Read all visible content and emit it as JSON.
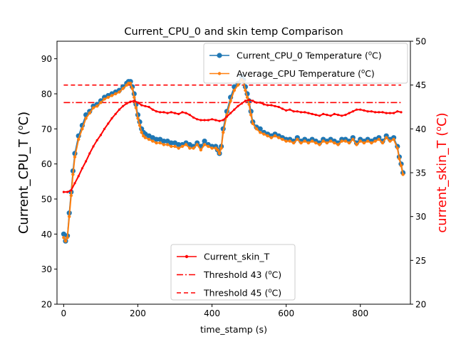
{
  "chart_data": {
    "type": "line",
    "title": "Current_CPU_0 and skin temp Comparison",
    "xlabel": "time_stamp (s)",
    "ylabel_left": "Current_CPU_T (ᵒC)",
    "ylabel_right": "current_skin_T (ᵒC)",
    "ylabel_left_parts": [
      "Current_CPU_T (",
      "o",
      "C)"
    ],
    "ylabel_right_parts": [
      "current_skin_T (",
      "o",
      "C)"
    ],
    "xlim": [
      -18,
      935
    ],
    "ylim_left": [
      20,
      95
    ],
    "ylim_right": [
      20,
      50
    ],
    "x_ticks": [
      0,
      200,
      400,
      600,
      800
    ],
    "y_ticks_left": [
      20,
      30,
      40,
      50,
      60,
      70,
      80,
      90
    ],
    "y_ticks_right": [
      20,
      25,
      30,
      35,
      40,
      45,
      50
    ],
    "grid": false,
    "legend_top": {
      "placement": "upper right",
      "entries": [
        {
          "series": "cpu",
          "label": "Current_CPU_0 Temperature (",
          "sup": "o",
          "tail": "C)"
        },
        {
          "series": "avg",
          "label": "Average_CPU Temperature (",
          "sup": "o",
          "tail": "C)"
        }
      ]
    },
    "legend_bottom": {
      "placement": "lower center",
      "entries": [
        {
          "series": "skin",
          "label": "Current_skin_T",
          "sup": "",
          "tail": ""
        },
        {
          "series": "th43",
          "label": "Threshold 43 (",
          "sup": "o",
          "tail": "C)"
        },
        {
          "series": "th45",
          "label": "Threshold 45 (",
          "sup": "o",
          "tail": "C)"
        }
      ]
    },
    "series": [
      {
        "key": "cpu",
        "axis": "left",
        "color": "#1f77b4",
        "style": "line+circle",
        "x": [
          0,
          5,
          10,
          15,
          20,
          25,
          30,
          40,
          50,
          60,
          70,
          80,
          90,
          100,
          110,
          120,
          130,
          140,
          150,
          160,
          170,
          175,
          180,
          185,
          190,
          195,
          200,
          205,
          210,
          215,
          220,
          230,
          240,
          250,
          260,
          270,
          280,
          290,
          300,
          310,
          320,
          330,
          340,
          350,
          360,
          370,
          380,
          390,
          400,
          410,
          415,
          420,
          425,
          430,
          440,
          450,
          460,
          470,
          480,
          485,
          490,
          495,
          500,
          505,
          510,
          520,
          530,
          540,
          550,
          560,
          570,
          580,
          590,
          600,
          610,
          620,
          630,
          640,
          650,
          660,
          670,
          680,
          690,
          700,
          710,
          720,
          730,
          740,
          750,
          760,
          770,
          780,
          790,
          800,
          810,
          820,
          830,
          840,
          850,
          860,
          870,
          880,
          890,
          900,
          905,
          910,
          915
        ],
        "y": [
          40,
          38,
          39.5,
          46,
          52,
          58,
          63,
          68,
          71,
          74,
          75,
          76.5,
          77,
          78,
          79,
          79.5,
          80,
          80.5,
          81,
          82,
          83,
          83.5,
          83.5,
          82,
          80,
          77,
          74,
          72,
          70,
          69,
          68.5,
          68,
          67.5,
          67,
          67,
          66.5,
          66.5,
          66,
          66,
          65.5,
          65.5,
          66,
          65.5,
          65,
          66,
          65,
          66.5,
          65.5,
          65,
          65,
          64,
          63,
          65,
          70,
          75,
          79,
          82,
          83,
          85,
          84,
          82,
          80,
          78,
          75,
          72,
          70.5,
          70,
          69,
          68.5,
          68,
          68.5,
          68,
          67.5,
          67,
          67,
          66.5,
          67.5,
          66.5,
          67,
          66.5,
          67,
          66.5,
          66,
          67,
          66.5,
          67,
          66.5,
          66,
          67,
          67,
          66.5,
          67.5,
          66,
          67,
          66.5,
          67,
          66.5,
          67,
          67.5,
          66.5,
          68,
          67,
          67.5,
          65,
          62,
          60,
          57.5
        ]
      },
      {
        "key": "avg",
        "axis": "left",
        "color": "#ff7f0e",
        "style": "line+dot",
        "x": [
          0,
          5,
          10,
          15,
          20,
          25,
          30,
          40,
          50,
          60,
          70,
          80,
          90,
          100,
          110,
          120,
          130,
          140,
          150,
          160,
          170,
          175,
          180,
          185,
          190,
          195,
          200,
          205,
          210,
          215,
          220,
          230,
          240,
          250,
          260,
          270,
          280,
          290,
          300,
          310,
          320,
          330,
          340,
          350,
          360,
          370,
          380,
          390,
          400,
          410,
          415,
          420,
          425,
          430,
          440,
          450,
          460,
          470,
          480,
          485,
          490,
          495,
          500,
          505,
          510,
          520,
          530,
          540,
          550,
          560,
          570,
          580,
          590,
          600,
          610,
          620,
          630,
          640,
          650,
          660,
          670,
          680,
          690,
          700,
          710,
          720,
          730,
          740,
          750,
          760,
          770,
          780,
          790,
          800,
          810,
          820,
          830,
          840,
          850,
          860,
          870,
          880,
          890,
          900,
          905,
          910,
          915
        ],
        "y": [
          39,
          38,
          39,
          45,
          51,
          57,
          62,
          67,
          70,
          73,
          74.5,
          76,
          76.5,
          77.5,
          78.5,
          79,
          79.5,
          80,
          80.5,
          81.5,
          82.5,
          83,
          83,
          81.5,
          79,
          76,
          73,
          71,
          69,
          68,
          67.5,
          67,
          66.5,
          66,
          66,
          65.5,
          65.5,
          65,
          65,
          64.5,
          65,
          65.5,
          64.5,
          64.5,
          65.5,
          64,
          65.5,
          65,
          64.5,
          64.5,
          64,
          63,
          64.5,
          69,
          74,
          78,
          81,
          82.5,
          84,
          83.5,
          81,
          79,
          77,
          74,
          71.5,
          70,
          69,
          68.5,
          68,
          67.5,
          68,
          67.5,
          67,
          66.5,
          66.5,
          66,
          67,
          66,
          66.5,
          66,
          66.5,
          66,
          65.5,
          66.5,
          66,
          66.5,
          66,
          65.5,
          66.5,
          66.5,
          66,
          67,
          65.5,
          66.5,
          66,
          66.5,
          66,
          66.5,
          67,
          66,
          67.5,
          66.5,
          67,
          64.5,
          61.5,
          59.5,
          57
        ]
      },
      {
        "key": "skin",
        "axis": "right",
        "color": "#ff0000",
        "style": "line+dot",
        "x": [
          0,
          10,
          20,
          30,
          40,
          50,
          60,
          70,
          80,
          90,
          100,
          110,
          120,
          130,
          140,
          150,
          160,
          170,
          180,
          190,
          200,
          210,
          220,
          230,
          240,
          250,
          260,
          270,
          280,
          290,
          300,
          310,
          320,
          330,
          340,
          350,
          360,
          370,
          380,
          390,
          400,
          410,
          420,
          430,
          440,
          450,
          460,
          470,
          480,
          490,
          500,
          510,
          520,
          530,
          540,
          550,
          560,
          570,
          580,
          590,
          600,
          610,
          620,
          630,
          640,
          650,
          660,
          670,
          680,
          690,
          700,
          710,
          720,
          730,
          740,
          750,
          760,
          770,
          780,
          790,
          800,
          810,
          820,
          830,
          840,
          850,
          860,
          870,
          880,
          890,
          900,
          910
        ],
        "y": [
          32.8,
          32.8,
          33,
          33.8,
          34.6,
          35.5,
          36.3,
          37.2,
          38,
          38.7,
          39.3,
          40,
          40.6,
          41.2,
          41.7,
          42.2,
          42.6,
          42.9,
          43.1,
          43.2,
          43,
          42.7,
          42.6,
          42.5,
          42.2,
          42,
          41.9,
          41.9,
          41.8,
          41.9,
          41.8,
          41.7,
          41.9,
          41.8,
          41.6,
          41.3,
          41.1,
          41,
          41,
          41,
          41.1,
          41,
          40.9,
          41,
          41.4,
          41.8,
          42.2,
          42.6,
          42.9,
          43.2,
          43.3,
          43.2,
          43,
          43,
          42.8,
          42.7,
          42.7,
          42.6,
          42.5,
          42.3,
          42.1,
          42.2,
          42,
          42,
          41.9,
          41.9,
          41.8,
          41.7,
          41.6,
          41.5,
          41.7,
          41.6,
          41.5,
          41.7,
          41.6,
          41.5,
          41.6,
          41.8,
          42,
          42.2,
          42.2,
          42.1,
          42,
          42,
          41.9,
          41.9,
          41.9,
          41.8,
          41.8,
          41.8,
          42,
          41.9
        ]
      },
      {
        "key": "th43",
        "axis": "right",
        "color": "#ff0000",
        "style": "dashdot",
        "x": [
          0,
          910
        ],
        "y": [
          43,
          43
        ]
      },
      {
        "key": "th45",
        "axis": "right",
        "color": "#ff0000",
        "style": "dashed",
        "x": [
          0,
          910
        ],
        "y": [
          45,
          45
        ]
      }
    ]
  }
}
